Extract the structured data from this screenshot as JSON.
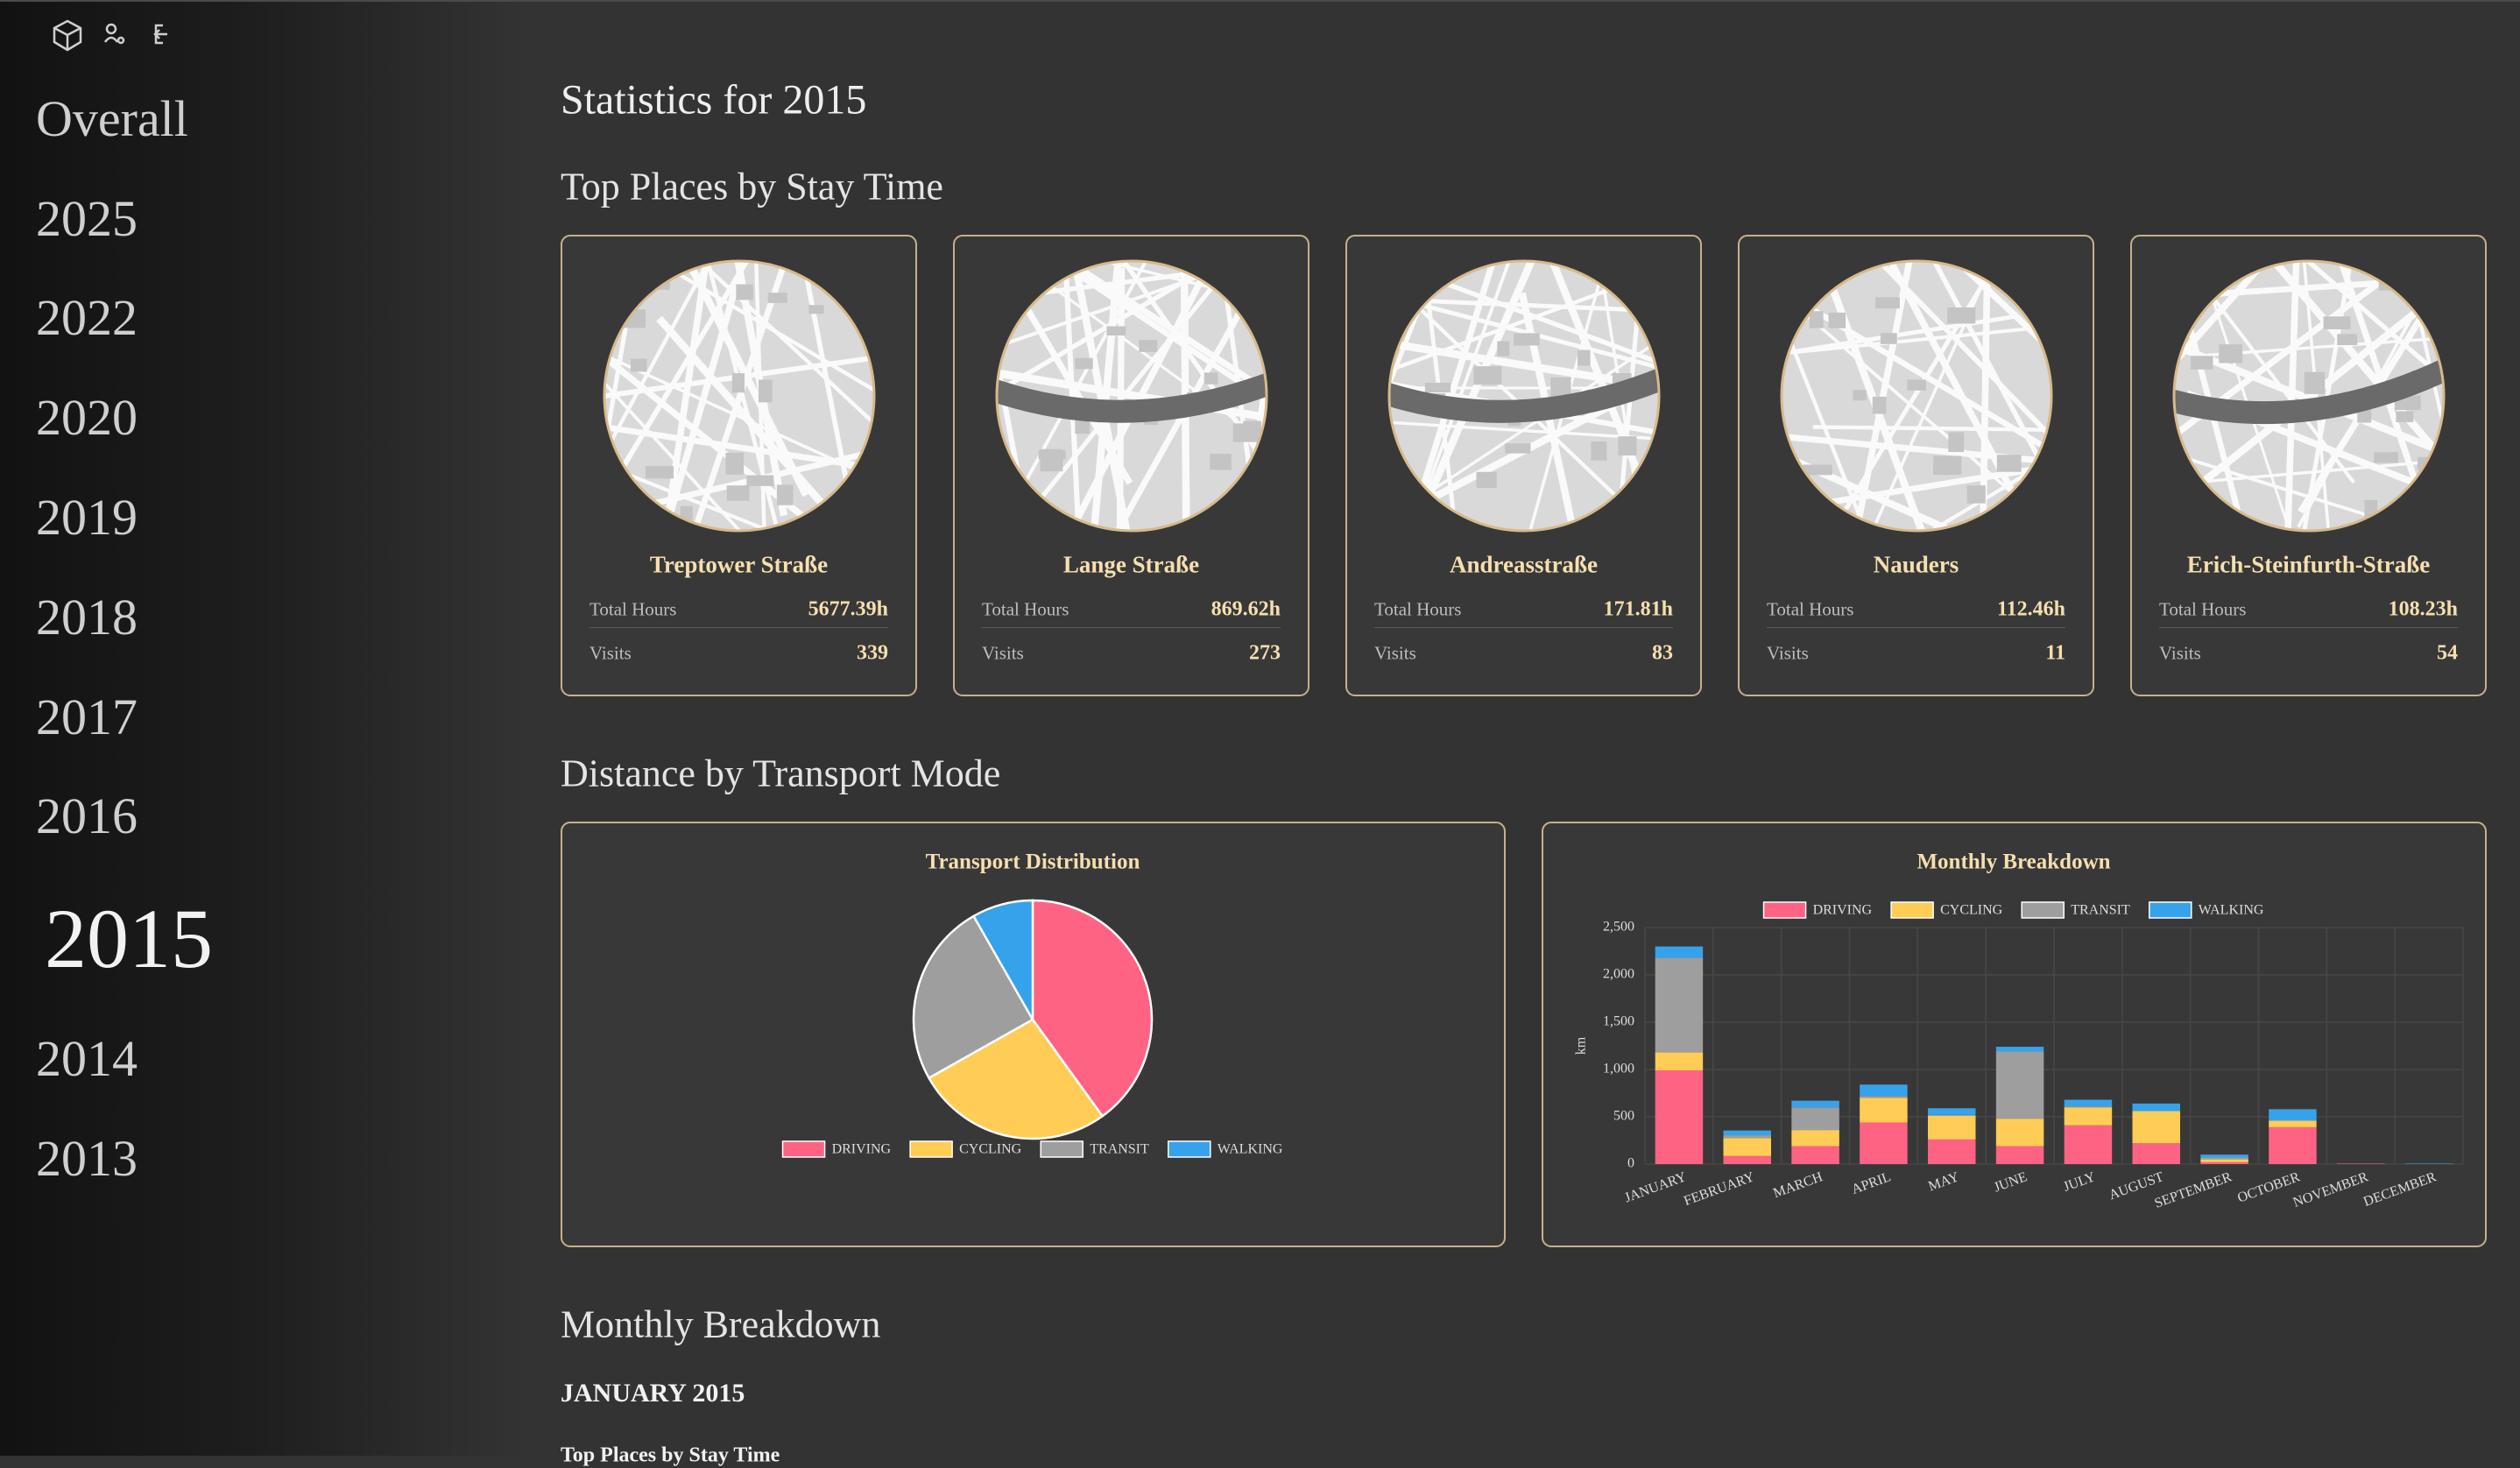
{
  "sidebar": {
    "nav": [
      "Overall",
      "2025",
      "2022",
      "2020",
      "2019",
      "2018",
      "2017",
      "2016",
      "2015",
      "2014",
      "2013"
    ],
    "active": 8
  },
  "header": {
    "title": "Statistics for 2015"
  },
  "places": {
    "title": "Top Places by Stay Time",
    "hours_label": "Total Hours",
    "visits_label": "Visits",
    "items": [
      {
        "name": "Treptower Straße",
        "hours": "5677.39h",
        "visits": 339
      },
      {
        "name": "Lange Straße",
        "hours": "869.62h",
        "visits": 273
      },
      {
        "name": "Andreasstraße",
        "hours": "171.81h",
        "visits": 83
      },
      {
        "name": "Nauders",
        "hours": "112.46h",
        "visits": 11
      },
      {
        "name": "Erich-Steinfurth-Straße",
        "hours": "108.23h",
        "visits": 54
      }
    ]
  },
  "transport": {
    "title": "Distance by Transport Mode"
  },
  "chart_data": [
    {
      "type": "pie",
      "title": "Transport Distribution",
      "categories": [
        "DRIVING",
        "CYCLING",
        "TRANSIT",
        "WALKING"
      ],
      "values": [
        3200,
        2140,
        1990,
        660
      ],
      "colors": [
        "#ff6384",
        "#ffcd56",
        "#9e9e9e",
        "#36a2eb"
      ]
    },
    {
      "type": "bar",
      "stacked": true,
      "title": "Monthly Breakdown",
      "y_label": "km",
      "categories": [
        "JANUARY",
        "FEBRUARY",
        "MARCH",
        "APRIL",
        "MAY",
        "JUNE",
        "JULY",
        "AUGUST",
        "SEPTEMBER",
        "OCTOBER",
        "NOVEMBER",
        "DECEMBER"
      ],
      "series": [
        {
          "name": "DRIVING",
          "color": "#ff6384",
          "values": [
            990,
            85,
            190,
            440,
            260,
            190,
            410,
            220,
            20,
            390,
            5,
            0
          ]
        },
        {
          "name": "CYCLING",
          "color": "#ffcd56",
          "values": [
            190,
            190,
            170,
            260,
            250,
            290,
            190,
            340,
            30,
            70,
            0,
            0
          ]
        },
        {
          "name": "TRANSIT",
          "color": "#9e9e9e",
          "values": [
            1000,
            30,
            240,
            20,
            10,
            710,
            10,
            0,
            20,
            0,
            0,
            0
          ]
        },
        {
          "name": "WALKING",
          "color": "#36a2eb",
          "values": [
            120,
            50,
            70,
            120,
            70,
            50,
            70,
            80,
            30,
            120,
            0,
            5
          ]
        }
      ],
      "ylim": [
        0,
        2500
      ],
      "yticks": [
        0,
        500,
        {
          "value": 1000,
          "label": "1,000"
        },
        {
          "value": 1500,
          "label": "1,500"
        },
        {
          "value": 2000,
          "label": "2,000"
        },
        {
          "value": 2500,
          "label": "2,500"
        }
      ],
      "grid": true
    }
  ],
  "monthly": {
    "title": "Monthly Breakdown",
    "month": "JANUARY 2015",
    "subtitle": "Top Places by Stay Time"
  }
}
